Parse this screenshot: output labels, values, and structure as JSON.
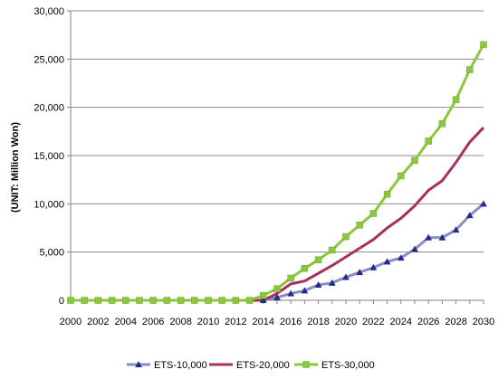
{
  "chart_data": {
    "type": "line",
    "title": "",
    "xlabel": "",
    "ylabel": "(UNIT: Million  Won)",
    "ylim": [
      0,
      30000
    ],
    "xlim": [
      2000,
      2030
    ],
    "y_ticks": [
      "0",
      "5,000",
      "10,000",
      "15,000",
      "20,000",
      "25,000",
      "30,000"
    ],
    "y_tick_values": [
      0,
      5000,
      10000,
      15000,
      20000,
      25000,
      30000
    ],
    "x_ticks": [
      "2000",
      "2002",
      "2004",
      "2006",
      "2008",
      "2010",
      "2012",
      "2014",
      "2016",
      "2018",
      "2020",
      "2022",
      "2024",
      "2026",
      "2028",
      "2030"
    ],
    "x_tick_values": [
      2000,
      2002,
      2004,
      2006,
      2008,
      2010,
      2012,
      2014,
      2016,
      2018,
      2020,
      2022,
      2024,
      2026,
      2028,
      2030
    ],
    "grid": "horizontal",
    "legend_position": "bottom",
    "x": [
      2000,
      2001,
      2002,
      2003,
      2004,
      2005,
      2006,
      2007,
      2008,
      2009,
      2010,
      2011,
      2012,
      2013,
      2014,
      2015,
      2016,
      2017,
      2018,
      2019,
      2020,
      2021,
      2022,
      2023,
      2024,
      2025,
      2026,
      2027,
      2028,
      2029,
      2030
    ],
    "series": [
      {
        "name": "ETS-10,000",
        "color": "#1f2a8c",
        "line_color": "#8a8cc4",
        "marker": "triangle",
        "values": [
          0,
          0,
          0,
          0,
          0,
          0,
          0,
          0,
          0,
          0,
          0,
          0,
          0,
          0,
          0,
          300,
          700,
          1000,
          1600,
          1800,
          2400,
          2900,
          3400,
          4000,
          4400,
          5300,
          6500,
          6500,
          7300,
          8800,
          10000
        ]
      },
      {
        "name": "ETS-20,000",
        "color": "#a8305e",
        "line_color": "#a8305e",
        "marker": "none",
        "values": [
          0,
          0,
          0,
          0,
          0,
          0,
          0,
          0,
          0,
          0,
          0,
          0,
          0,
          0,
          0,
          700,
          1700,
          2000,
          2800,
          3600,
          4500,
          5400,
          6300,
          7500,
          8500,
          9800,
          11400,
          12400,
          14300,
          16400,
          17900
        ]
      },
      {
        "name": "ETS-30,000",
        "color": "#8dc63f",
        "line_color": "#8dc63f",
        "marker": "square",
        "values": [
          0,
          0,
          0,
          0,
          0,
          0,
          0,
          0,
          0,
          0,
          0,
          0,
          0,
          0,
          500,
          1200,
          2300,
          3300,
          4200,
          5200,
          6600,
          7800,
          9000,
          11000,
          12900,
          14500,
          16500,
          18300,
          20800,
          23900,
          26500
        ]
      }
    ]
  }
}
